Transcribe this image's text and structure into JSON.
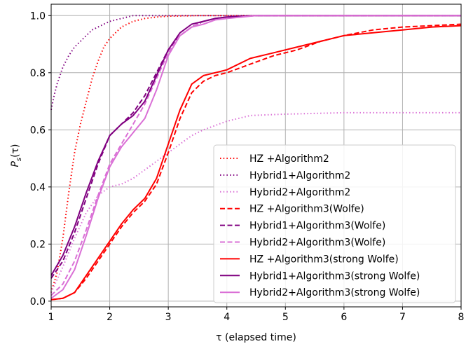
{
  "chart_data": {
    "type": "line",
    "title": "",
    "xlabel": "τ (elapsed time)",
    "ylabel": "P_s(τ)",
    "ylabel_main": "P",
    "ylabel_sub": "s",
    "ylabel_tail": "(τ)",
    "xlim": [
      1,
      8
    ],
    "ylim": [
      -0.02,
      1.04
    ],
    "xticks": [
      "1",
      "2",
      "3",
      "4",
      "5",
      "6",
      "7",
      "8"
    ],
    "yticks": [
      "0.0",
      "0.2",
      "0.4",
      "0.6",
      "0.8",
      "1.0"
    ],
    "grid": true,
    "legend_position": "lower-right",
    "colors": {
      "red": "#ff0000",
      "purple": "#800080",
      "orchid": "#da70d6"
    },
    "series": [
      {
        "name": "HZ        +Algorithm2",
        "color": "#ff0000",
        "style": "dotted",
        "x": [
          1.0,
          1.1,
          1.2,
          1.3,
          1.4,
          1.5,
          1.6,
          1.7,
          1.8,
          1.9,
          2.0,
          2.2,
          2.4,
          2.6,
          2.8,
          3.0,
          3.5,
          4.0,
          8.0
        ],
        "y": [
          0.03,
          0.1,
          0.22,
          0.38,
          0.52,
          0.62,
          0.7,
          0.78,
          0.84,
          0.89,
          0.92,
          0.96,
          0.98,
          0.99,
          0.995,
          0.998,
          1.0,
          1.0,
          1.0
        ]
      },
      {
        "name": "Hybrid1+Algorithm2",
        "color": "#800080",
        "style": "dotted",
        "x": [
          1.0,
          1.05,
          1.1,
          1.2,
          1.3,
          1.4,
          1.5,
          1.6,
          1.7,
          1.8,
          1.9,
          2.0,
          2.2,
          2.4,
          2.6,
          3.0,
          8.0
        ],
        "y": [
          0.67,
          0.72,
          0.76,
          0.82,
          0.86,
          0.89,
          0.91,
          0.93,
          0.95,
          0.96,
          0.97,
          0.98,
          0.99,
          1.0,
          1.0,
          1.0,
          1.0
        ]
      },
      {
        "name": "Hybrid2+Algorithm2",
        "color": "#da70d6",
        "style": "dotted",
        "x": [
          1.0,
          1.2,
          1.4,
          1.6,
          1.8,
          2.0,
          2.2,
          2.4,
          2.6,
          2.8,
          3.0,
          3.2,
          3.4,
          3.6,
          4.0,
          4.4,
          5.0,
          6.0,
          8.0
        ],
        "y": [
          0.03,
          0.12,
          0.22,
          0.31,
          0.37,
          0.4,
          0.41,
          0.43,
          0.46,
          0.49,
          0.52,
          0.55,
          0.58,
          0.6,
          0.63,
          0.65,
          0.655,
          0.66,
          0.66
        ]
      },
      {
        "name": "HZ        +Algorithm3(Wolfe)",
        "color": "#ff0000",
        "style": "dashed",
        "x": [
          1.0,
          1.2,
          1.4,
          1.6,
          1.8,
          2.0,
          2.2,
          2.4,
          2.6,
          2.8,
          3.0,
          3.2,
          3.4,
          3.6,
          3.8,
          4.0,
          4.4,
          4.8,
          5.2,
          5.6,
          6.0,
          6.5,
          7.0,
          7.5,
          8.0
        ],
        "y": [
          0.005,
          0.01,
          0.03,
          0.08,
          0.14,
          0.2,
          0.26,
          0.31,
          0.35,
          0.41,
          0.52,
          0.64,
          0.73,
          0.77,
          0.79,
          0.8,
          0.83,
          0.86,
          0.88,
          0.91,
          0.93,
          0.95,
          0.96,
          0.965,
          0.97
        ]
      },
      {
        "name": "Hybrid1+Algorithm3(Wolfe)",
        "color": "#800080",
        "style": "dashed",
        "x": [
          1.0,
          1.2,
          1.4,
          1.6,
          1.8,
          2.0,
          2.2,
          2.4,
          2.6,
          2.8,
          3.0,
          3.2,
          3.4,
          3.6,
          3.8,
          4.0,
          4.5,
          8.0
        ],
        "y": [
          0.08,
          0.14,
          0.24,
          0.36,
          0.48,
          0.58,
          0.62,
          0.66,
          0.72,
          0.8,
          0.88,
          0.93,
          0.96,
          0.98,
          0.99,
          0.995,
          1.0,
          1.0
        ]
      },
      {
        "name": "Hybrid2+Algorithm3(Wolfe)",
        "color": "#da70d6",
        "style": "dashed",
        "x": [
          1.0,
          1.2,
          1.4,
          1.6,
          1.8,
          2.0,
          2.2,
          2.4,
          2.6,
          2.8,
          3.0,
          3.2,
          3.4,
          3.6,
          3.8,
          4.0,
          4.5,
          8.0
        ],
        "y": [
          0.02,
          0.06,
          0.14,
          0.25,
          0.37,
          0.48,
          0.55,
          0.62,
          0.69,
          0.78,
          0.87,
          0.93,
          0.96,
          0.98,
          0.99,
          0.995,
          1.0,
          1.0
        ]
      },
      {
        "name": "HZ        +Algorithm3(strong Wolfe)",
        "color": "#ff0000",
        "style": "solid",
        "x": [
          1.0,
          1.2,
          1.4,
          1.6,
          1.8,
          2.0,
          2.2,
          2.4,
          2.6,
          2.8,
          3.0,
          3.2,
          3.4,
          3.6,
          3.8,
          4.0,
          4.4,
          4.8,
          5.2,
          5.6,
          6.0,
          6.5,
          7.0,
          7.5,
          8.0
        ],
        "y": [
          0.005,
          0.01,
          0.03,
          0.09,
          0.15,
          0.21,
          0.27,
          0.32,
          0.36,
          0.43,
          0.55,
          0.67,
          0.76,
          0.79,
          0.8,
          0.81,
          0.85,
          0.87,
          0.89,
          0.91,
          0.93,
          0.94,
          0.95,
          0.96,
          0.965
        ]
      },
      {
        "name": "Hybrid1+Algorithm3(strong Wolfe)",
        "color": "#800080",
        "style": "solid",
        "x": [
          1.0,
          1.2,
          1.4,
          1.6,
          1.8,
          2.0,
          2.2,
          2.4,
          2.6,
          2.8,
          3.0,
          3.2,
          3.4,
          3.6,
          3.8,
          4.0,
          4.5,
          8.0
        ],
        "y": [
          0.09,
          0.16,
          0.26,
          0.38,
          0.49,
          0.58,
          0.62,
          0.65,
          0.7,
          0.79,
          0.88,
          0.94,
          0.97,
          0.98,
          0.99,
          0.995,
          1.0,
          1.0
        ]
      },
      {
        "name": "Hybrid2+Algorithm3(strong Wolfe)",
        "color": "#da70d6",
        "style": "solid",
        "x": [
          1.0,
          1.2,
          1.4,
          1.6,
          1.8,
          2.0,
          2.2,
          2.4,
          2.6,
          2.8,
          3.0,
          3.2,
          3.4,
          3.6,
          3.8,
          4.0,
          4.5,
          8.0
        ],
        "y": [
          0.01,
          0.04,
          0.11,
          0.23,
          0.36,
          0.47,
          0.54,
          0.59,
          0.64,
          0.74,
          0.86,
          0.93,
          0.96,
          0.97,
          0.985,
          0.99,
          1.0,
          1.0
        ]
      }
    ]
  }
}
